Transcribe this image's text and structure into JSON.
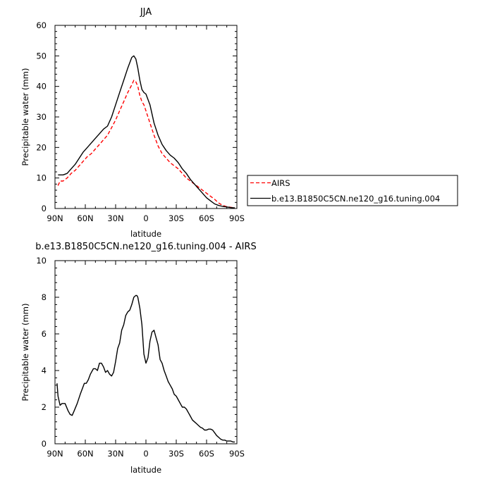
{
  "chart_data": [
    {
      "type": "line",
      "title": "JJA",
      "xlabel": "latitude",
      "ylabel": "Precipitable water (mm)",
      "xlim": [
        90,
        -90
      ],
      "ylim": [
        0,
        60
      ],
      "xticks": [
        90,
        60,
        30,
        0,
        -30,
        -60,
        -90
      ],
      "xtick_labels": [
        "90N",
        "60N",
        "30N",
        "0",
        "30S",
        "60S",
        "90S"
      ],
      "yticks": [
        0,
        10,
        20,
        30,
        40,
        50,
        60
      ],
      "ytick_labels": [
        "0",
        "10",
        "20",
        "30",
        "40",
        "50",
        "60"
      ],
      "legend_position": "right",
      "series": [
        {
          "name": "AIRS",
          "color": "#ff0000",
          "dash": true,
          "x": [
            87,
            85,
            82,
            78,
            74,
            70,
            66,
            62,
            58,
            54,
            50,
            46,
            42,
            38,
            34,
            30,
            26,
            22,
            18,
            14,
            12,
            10,
            8,
            6,
            4,
            2,
            0,
            -4,
            -8,
            -12,
            -16,
            -20,
            -24,
            -28,
            -32,
            -36,
            -40,
            -44,
            -48,
            -52,
            -56,
            -60,
            -64,
            -68,
            -72,
            -76,
            -80,
            -84,
            -88
          ],
          "y": [
            7.5,
            9,
            9,
            10,
            11.5,
            12.5,
            14,
            15.5,
            17,
            18,
            19.5,
            21,
            22.5,
            24,
            26.5,
            29,
            32,
            35,
            38,
            40.5,
            42,
            41.5,
            40,
            37,
            35,
            34,
            32,
            28,
            24,
            20.5,
            18,
            16.5,
            15,
            14,
            13,
            11.5,
            10,
            9,
            8,
            7,
            6,
            5,
            4,
            3,
            1.8,
            1,
            0.6,
            0.4,
            0.2
          ]
        },
        {
          "name": "b.e13.B1850C5CN.ne120_g16.tuning.004",
          "color": "#000000",
          "dash": false,
          "x": [
            87,
            85,
            82,
            78,
            74,
            70,
            66,
            62,
            58,
            54,
            50,
            46,
            42,
            38,
            34,
            30,
            26,
            22,
            18,
            14,
            12,
            10,
            8,
            6,
            4,
            2,
            0,
            -4,
            -8,
            -12,
            -16,
            -20,
            -24,
            -28,
            -32,
            -36,
            -40,
            -44,
            -48,
            -52,
            -56,
            -60,
            -64,
            -68,
            -72,
            -76,
            -80,
            -84,
            -88
          ],
          "y": [
            11,
            11,
            11,
            11.5,
            13,
            14.5,
            16.5,
            18.5,
            20,
            21.5,
            23,
            24.5,
            26,
            27,
            30,
            34,
            38,
            42,
            46,
            49.5,
            50,
            49,
            46,
            42,
            39,
            38,
            37.5,
            34,
            28,
            24,
            21,
            19,
            17.5,
            16.5,
            15,
            13,
            11.5,
            9.5,
            8,
            6.5,
            5,
            3.5,
            2.5,
            1.5,
            1,
            0.7,
            0.5,
            0.3,
            0.2
          ]
        }
      ]
    },
    {
      "type": "line",
      "title": "b.e13.B1850C5CN.ne120_g16.tuning.004 - AIRS",
      "xlabel": "latitude",
      "ylabel": "Precipitable water (mm)",
      "xlim": [
        90,
        -90
      ],
      "ylim": [
        0,
        10
      ],
      "xticks": [
        90,
        60,
        30,
        0,
        -30,
        -60,
        -90
      ],
      "xtick_labels": [
        "90N",
        "60N",
        "30N",
        "0",
        "30S",
        "60S",
        "90S"
      ],
      "yticks": [
        0,
        2,
        4,
        6,
        8,
        10
      ],
      "ytick_labels": [
        "0",
        "2",
        "4",
        "6",
        "8",
        "10"
      ],
      "series": [
        {
          "color": "#000000",
          "dash": false,
          "x": [
            88,
            87,
            85,
            83,
            80,
            77,
            75,
            73,
            71,
            68,
            65,
            63,
            61,
            59,
            57,
            55,
            52,
            50,
            48,
            46,
            44,
            42,
            40,
            38,
            36,
            34,
            32,
            30,
            28,
            26,
            24,
            22,
            20,
            18,
            16,
            14,
            12,
            10,
            9,
            8,
            6,
            4,
            2,
            0,
            -2,
            -4,
            -6,
            -8,
            -10,
            -12,
            -14,
            -16,
            -18,
            -20,
            -22,
            -24,
            -26,
            -28,
            -30,
            -32,
            -34,
            -36,
            -38,
            -40,
            -42,
            -44,
            -46,
            -48,
            -50,
            -52,
            -54,
            -56,
            -58,
            -60,
            -62,
            -64,
            -66,
            -68,
            -70,
            -72,
            -74,
            -76,
            -78,
            -80,
            -82,
            -84,
            -86,
            -88
          ],
          "y": [
            3.3,
            2.6,
            2.1,
            2.2,
            2.2,
            1.8,
            1.6,
            1.55,
            1.8,
            2.2,
            2.7,
            3.0,
            3.3,
            3.3,
            3.5,
            3.8,
            4.1,
            4.1,
            4.0,
            4.4,
            4.4,
            4.2,
            3.9,
            4.0,
            3.8,
            3.7,
            3.9,
            4.5,
            5.2,
            5.5,
            6.2,
            6.5,
            7.0,
            7.2,
            7.3,
            7.6,
            8.0,
            8.1,
            8.1,
            8.0,
            7.4,
            6.5,
            4.9,
            4.4,
            4.7,
            5.6,
            6.1,
            6.2,
            5.8,
            5.4,
            4.6,
            4.4,
            4.0,
            3.7,
            3.4,
            3.2,
            3.0,
            2.7,
            2.6,
            2.4,
            2.2,
            2.0,
            2.0,
            1.9,
            1.7,
            1.5,
            1.3,
            1.2,
            1.1,
            1.0,
            0.9,
            0.85,
            0.75,
            0.75,
            0.8,
            0.8,
            0.75,
            0.6,
            0.45,
            0.35,
            0.25,
            0.2,
            0.2,
            0.15,
            0.15,
            0.15,
            0.1,
            0.1
          ]
        }
      ]
    }
  ]
}
